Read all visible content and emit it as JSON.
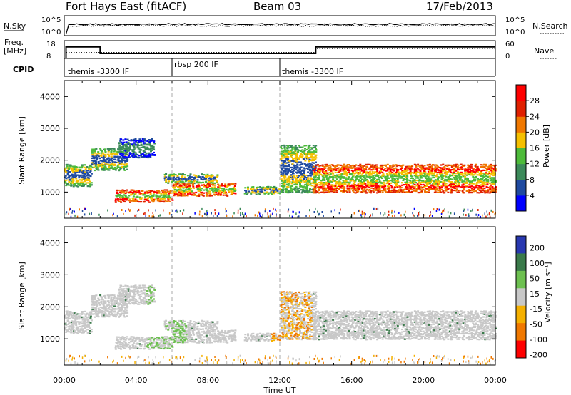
{
  "header": {
    "station": "Fort Hays East (fitACF)",
    "beam": "Beam 03",
    "date": "17/Feb/2013"
  },
  "panels": {
    "nsky": {
      "label": "N.Sky",
      "right_label": "N.Search",
      "left_ticks": [
        "10^5",
        "10^0"
      ],
      "right_ticks": [
        "10^5",
        "10^0"
      ]
    },
    "freq": {
      "label_top": "Freq.",
      "label_unit": "[MHz]",
      "right_label": "Nave",
      "left_ticks": [
        "18",
        "8"
      ],
      "right_ticks": [
        "60",
        "0"
      ]
    },
    "cpid": {
      "label": "CPID",
      "segments": [
        {
          "text": "themis -3300 IF",
          "start_hour": 0
        },
        {
          "text": "rbsp 200 IF",
          "start_hour": 6
        },
        {
          "text": "themis -3300 IF",
          "start_hour": 12
        }
      ]
    }
  },
  "power_colorbar": {
    "label": "Power [dB]",
    "ticks": [
      "4",
      "8",
      "12",
      "16",
      "20",
      "24",
      "28"
    ],
    "colors": [
      "#0000ff",
      "#1f4aa0",
      "#3c8a5a",
      "#4dbb3a",
      "#f5c000",
      "#f07800",
      "#e02000",
      "#ff0000"
    ]
  },
  "velocity_colorbar": {
    "label": "Velocity [m s⁻¹]",
    "ticks": [
      "200",
      "100",
      "50",
      "15",
      "-15",
      "-50",
      "-100",
      "-200"
    ],
    "colors": [
      "#2838b0",
      "#3a7a4a",
      "#6dc050",
      "#c8c8c8",
      "#f5b000",
      "#f07800",
      "#ff0000"
    ]
  },
  "x_axis": {
    "label": "Time UT",
    "ticks": [
      "00:00",
      "04:00",
      "08:00",
      "12:00",
      "16:00",
      "20:00",
      "00:00"
    ]
  },
  "chart_data": [
    {
      "type": "line",
      "series": [
        {
          "name": "N.Sky",
          "approx_level": "about 10^2-10^3 after 00:15"
        },
        {
          "name": "N.Search",
          "approx_level": "about 10^2-10^3"
        }
      ],
      "x_range_hours": [
        0,
        24
      ],
      "ylabel": "N.Sky"
    },
    {
      "type": "line",
      "series": [
        {
          "name": "Freq",
          "segments": [
            {
              "x": [
                0.1,
                2.0
              ],
              "y": 14.5
            },
            {
              "x": [
                2.0,
                14.0
              ],
              "y": 10.8
            },
            {
              "x": [
                14.0,
                24.0
              ],
              "y": 14.5
            }
          ]
        },
        {
          "name": "Nave",
          "segments": [
            {
              "x": [
                0.1,
                14.0
              ],
              "y": 20
            },
            {
              "x": [
                14.0,
                24.0
              ],
              "y": 33
            }
          ]
        }
      ],
      "ylim": [
        8,
        18
      ],
      "ylabel": "Freq. [MHz]"
    },
    {
      "type": "heatmap",
      "quantity": "Power",
      "ylabel": "Slant Range [km]",
      "y_ticks": [
        1000,
        2000,
        3000,
        4000
      ],
      "ylim": [
        180,
        4500
      ],
      "x_range_hours": [
        0,
        24
      ],
      "blobs": [
        {
          "t": [
            0.0,
            1.5
          ],
          "r": [
            1200,
            1900
          ],
          "level": "mid"
        },
        {
          "t": [
            1.5,
            3.5
          ],
          "r": [
            1700,
            2400
          ],
          "level": "mid"
        },
        {
          "t": [
            3.0,
            5.0
          ],
          "r": [
            2100,
            2700
          ],
          "level": "low"
        },
        {
          "t": [
            2.8,
            6.0
          ],
          "r": [
            700,
            1100
          ],
          "level": "high"
        },
        {
          "t": [
            5.5,
            8.5
          ],
          "r": [
            1300,
            1600
          ],
          "level": "mid"
        },
        {
          "t": [
            6.0,
            9.5
          ],
          "r": [
            900,
            1300
          ],
          "level": "high"
        },
        {
          "t": [
            10.0,
            12.0
          ],
          "r": [
            950,
            1200
          ],
          "level": "mid"
        },
        {
          "t": [
            12.0,
            14.0
          ],
          "r": [
            1000,
            2500
          ],
          "level": "mid"
        },
        {
          "t": [
            13.8,
            24.0
          ],
          "r": [
            1000,
            1900
          ],
          "level": "high"
        }
      ]
    },
    {
      "type": "heatmap",
      "quantity": "Velocity",
      "ylabel": "Slant Range [km]",
      "y_ticks": [
        1000,
        2000,
        3000,
        4000
      ],
      "ylim": [
        180,
        4500
      ],
      "x_range_hours": [
        0,
        24
      ],
      "note_values": "mostly ground scatter (±15 m/s, gray) with positive (green) patches near 06:00 and negative (orange/red) patches near 12:00-14:00"
    }
  ]
}
